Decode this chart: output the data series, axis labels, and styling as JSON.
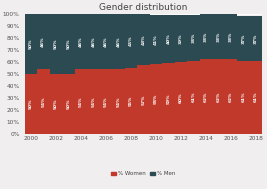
{
  "years": [
    2000,
    2001,
    2002,
    2003,
    2004,
    2005,
    2006,
    2007,
    2008,
    2009,
    2010,
    2011,
    2012,
    2013,
    2014,
    2015,
    2016,
    2017,
    2018
  ],
  "women_pct": [
    50,
    54,
    50,
    50,
    54,
    54,
    54,
    54,
    55,
    57,
    58,
    59,
    60,
    61,
    62,
    62,
    62,
    61,
    61
  ],
  "men_pct": [
    50,
    46,
    50,
    50,
    46,
    46,
    46,
    46,
    45,
    43,
    41,
    40,
    39,
    38,
    38,
    38,
    38,
    37,
    37
  ],
  "women_color": "#c0392b",
  "men_color": "#2c4a52",
  "title": "Gender distribution",
  "title_fontsize": 6.5,
  "bar_label_fontsize": 3.2,
  "legend_fontsize": 4.0,
  "tick_fontsize": 4.2,
  "background_color": "#f0eeee",
  "ylim": [
    0,
    100
  ],
  "yticks": [
    0,
    10,
    20,
    30,
    40,
    50,
    60,
    70,
    80,
    90,
    100
  ],
  "xtick_years": [
    2000,
    2002,
    2004,
    2006,
    2008,
    2010,
    2012,
    2014,
    2016,
    2018
  ]
}
